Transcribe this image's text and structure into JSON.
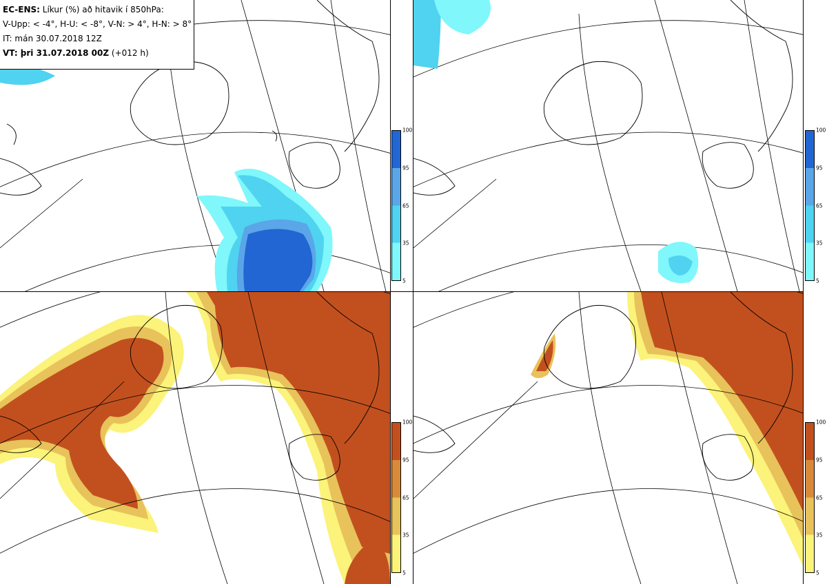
{
  "info": {
    "line1_bold": "EC-ENS:",
    "line1_rest": " Líkur (%) að hitavik í 850hPa:",
    "line2": "V-Upp: < -4°, H-U: < -8°, V-N: > 4°, H-N: > 8°",
    "line3": "IT: mán 30.07.2018 12Z",
    "line4_bold": "VT: þri 31.07.2018 00Z",
    "line4_rest": " (+012 h)"
  },
  "colorbar_ticks": [
    "100",
    "95",
    "65",
    "35",
    "5"
  ],
  "colors": {
    "cold": [
      "#7ff7fb",
      "#4fd3f0",
      "#5aa6e8",
      "#2166d3"
    ],
    "warm": [
      "#fbf37a",
      "#e8c25a",
      "#d88a3a",
      "#c2501e"
    ],
    "coast": "#000000",
    "grid": "#000000"
  },
  "panels": [
    {
      "name": "upper-left",
      "field": "V-Upp",
      "palette": "cold"
    },
    {
      "name": "upper-right",
      "field": "H-U",
      "palette": "cold"
    },
    {
      "name": "lower-left",
      "field": "V-N",
      "palette": "warm"
    },
    {
      "name": "lower-right",
      "field": "H-N",
      "palette": "warm"
    }
  ]
}
